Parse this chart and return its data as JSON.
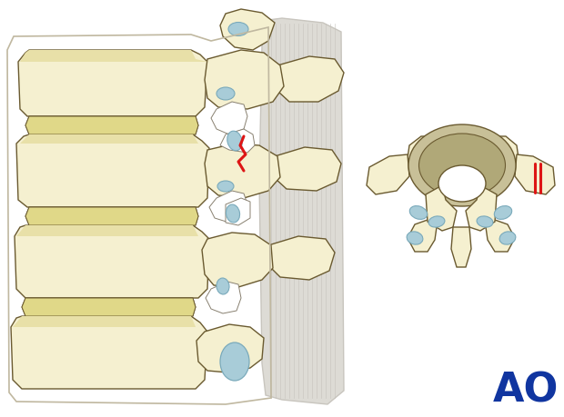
{
  "background_color": "#ffffff",
  "bone_color": "#f5f0d0",
  "bone_light": "#faf8e8",
  "bone_shade": "#e8e0a8",
  "bone_outline": "#6a5a30",
  "disc_color": "#e0d888",
  "cartilage_color": "#a8ccd8",
  "cartilage_dark": "#7aaabb",
  "red_fracture": "#dd1515",
  "muscle_color": "#dddbd5",
  "muscle_line": "#c5c2bc",
  "disc_body_color": "#b0a878",
  "disc_body_light": "#c8c098",
  "ao_color": "#1035a0",
  "ao_text": "AO",
  "ao_fontsize": 32,
  "white_tissue": "#ffffff",
  "tissue_outline": "#888070"
}
